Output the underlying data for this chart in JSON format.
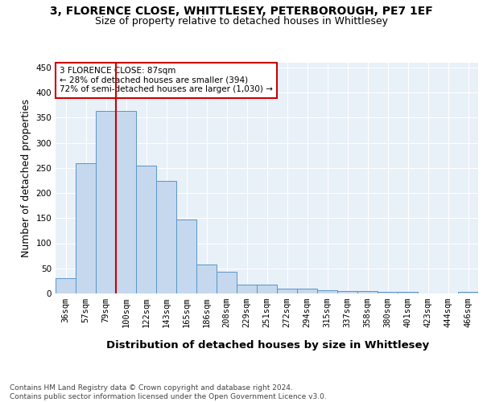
{
  "title": "3, FLORENCE CLOSE, WHITTLESEY, PETERBOROUGH, PE7 1EF",
  "subtitle": "Size of property relative to detached houses in Whittlesey",
  "xlabel": "Distribution of detached houses by size in Whittlesey",
  "ylabel": "Number of detached properties",
  "bar_values": [
    31,
    260,
    363,
    363,
    255,
    224,
    147,
    57,
    44,
    18,
    18,
    10,
    10,
    7,
    5,
    5,
    3,
    3,
    0,
    0,
    3
  ],
  "bin_labels": [
    "36sqm",
    "57sqm",
    "79sqm",
    "100sqm",
    "122sqm",
    "143sqm",
    "165sqm",
    "186sqm",
    "208sqm",
    "229sqm",
    "251sqm",
    "272sqm",
    "294sqm",
    "315sqm",
    "337sqm",
    "358sqm",
    "380sqm",
    "401sqm",
    "423sqm",
    "444sqm",
    "466sqm"
  ],
  "bar_color": "#c5d8ed",
  "bar_edge_color": "#5a96c8",
  "property_line_bin_index": 2.5,
  "annotation_text": "3 FLORENCE CLOSE: 87sqm\n← 28% of detached houses are smaller (394)\n72% of semi-detached houses are larger (1,030) →",
  "annotation_box_color": "#ffffff",
  "annotation_box_edge_color": "#cc0000",
  "vline_color": "#cc0000",
  "ylim": [
    0,
    460
  ],
  "yticks": [
    0,
    50,
    100,
    150,
    200,
    250,
    300,
    350,
    400,
    450
  ],
  "footer_text": "Contains HM Land Registry data © Crown copyright and database right 2024.\nContains public sector information licensed under the Open Government Licence v3.0.",
  "background_color": "#e8f0f8",
  "grid_color": "#ffffff",
  "title_fontsize": 10,
  "subtitle_fontsize": 9,
  "label_fontsize": 9,
  "tick_fontsize": 7.5,
  "footer_fontsize": 6.5
}
